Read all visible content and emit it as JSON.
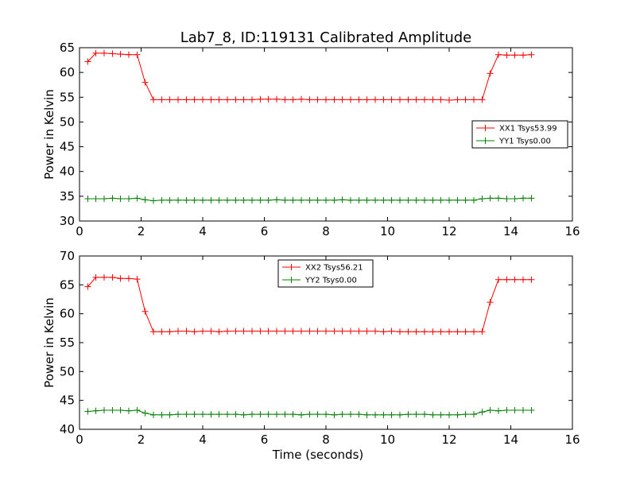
{
  "chart_data": [
    {
      "type": "line",
      "title": "Lab7_8, ID:119131 Calibrated Amplitude",
      "xlabel": "",
      "ylabel": "Power in Kelvin",
      "xlim": [
        0,
        16
      ],
      "ylim": [
        30,
        65
      ],
      "xticks": [
        0,
        2,
        4,
        6,
        8,
        10,
        12,
        14,
        16
      ],
      "yticks": [
        30,
        35,
        40,
        45,
        50,
        55,
        60,
        65
      ],
      "grid": false,
      "legend_position": "center-right",
      "x": [
        0.27,
        0.53,
        0.8,
        1.07,
        1.33,
        1.6,
        1.87,
        2.13,
        2.4,
        2.67,
        2.93,
        3.2,
        3.47,
        3.73,
        4.0,
        4.27,
        4.53,
        4.8,
        5.07,
        5.33,
        5.6,
        5.87,
        6.13,
        6.4,
        6.67,
        6.93,
        7.2,
        7.47,
        7.73,
        8.0,
        8.27,
        8.53,
        8.8,
        9.07,
        9.33,
        9.6,
        9.87,
        10.13,
        10.4,
        10.67,
        10.93,
        11.2,
        11.47,
        11.73,
        12.0,
        12.27,
        12.53,
        12.8,
        13.07,
        13.33,
        13.6,
        13.87,
        14.13,
        14.4,
        14.67
      ],
      "series": [
        {
          "name": "XX1 Tsys53.99",
          "color": "#ff0000",
          "values": [
            62.2,
            63.9,
            63.9,
            63.8,
            63.7,
            63.6,
            63.6,
            58.0,
            54.5,
            54.5,
            54.5,
            54.5,
            54.5,
            54.5,
            54.5,
            54.5,
            54.5,
            54.5,
            54.5,
            54.5,
            54.5,
            54.6,
            54.6,
            54.6,
            54.5,
            54.5,
            54.6,
            54.5,
            54.5,
            54.5,
            54.5,
            54.5,
            54.5,
            54.5,
            54.5,
            54.5,
            54.5,
            54.5,
            54.5,
            54.5,
            54.5,
            54.5,
            54.5,
            54.5,
            54.4,
            54.5,
            54.5,
            54.5,
            54.5,
            59.8,
            63.6,
            63.5,
            63.5,
            63.5,
            63.6
          ]
        },
        {
          "name": "YY1 Tsys0.00",
          "color": "#008000",
          "values": [
            34.5,
            34.5,
            34.5,
            34.6,
            34.5,
            34.5,
            34.6,
            34.3,
            34.1,
            34.2,
            34.2,
            34.2,
            34.2,
            34.2,
            34.2,
            34.2,
            34.2,
            34.2,
            34.2,
            34.2,
            34.2,
            34.2,
            34.2,
            34.3,
            34.2,
            34.2,
            34.2,
            34.2,
            34.2,
            34.2,
            34.2,
            34.3,
            34.2,
            34.2,
            34.2,
            34.2,
            34.2,
            34.2,
            34.2,
            34.2,
            34.2,
            34.2,
            34.2,
            34.2,
            34.2,
            34.2,
            34.2,
            34.2,
            34.5,
            34.6,
            34.6,
            34.5,
            34.5,
            34.6,
            34.6
          ]
        }
      ]
    },
    {
      "type": "line",
      "title": "",
      "xlabel": "Time (seconds)",
      "ylabel": "Power in Kelvin",
      "xlim": [
        0,
        16
      ],
      "ylim": [
        40,
        70
      ],
      "xticks": [
        0,
        2,
        4,
        6,
        8,
        10,
        12,
        14,
        16
      ],
      "yticks": [
        40,
        45,
        50,
        55,
        60,
        65,
        70
      ],
      "grid": false,
      "legend_position": "top-center",
      "x": [
        0.27,
        0.53,
        0.8,
        1.07,
        1.33,
        1.6,
        1.87,
        2.13,
        2.4,
        2.67,
        2.93,
        3.2,
        3.47,
        3.73,
        4.0,
        4.27,
        4.53,
        4.8,
        5.07,
        5.33,
        5.6,
        5.87,
        6.13,
        6.4,
        6.67,
        6.93,
        7.2,
        7.47,
        7.73,
        8.0,
        8.27,
        8.53,
        8.8,
        9.07,
        9.33,
        9.6,
        9.87,
        10.13,
        10.4,
        10.67,
        10.93,
        11.2,
        11.47,
        11.73,
        12.0,
        12.27,
        12.53,
        12.8,
        13.07,
        13.33,
        13.6,
        13.87,
        14.13,
        14.4,
        14.67
      ],
      "series": [
        {
          "name": "XX2 Tsys56.21",
          "color": "#ff0000",
          "values": [
            64.7,
            66.3,
            66.3,
            66.3,
            66.1,
            66.1,
            66.0,
            60.4,
            56.9,
            56.9,
            56.9,
            57.0,
            57.0,
            56.9,
            57.0,
            57.0,
            56.9,
            57.0,
            57.0,
            57.0,
            57.0,
            57.0,
            57.0,
            57.0,
            57.0,
            57.0,
            57.0,
            57.0,
            57.0,
            57.0,
            57.0,
            57.0,
            57.0,
            57.0,
            57.0,
            57.0,
            56.9,
            57.0,
            56.9,
            56.9,
            56.9,
            56.9,
            56.9,
            56.9,
            56.9,
            56.9,
            56.9,
            56.9,
            56.9,
            62.0,
            65.9,
            65.9,
            65.9,
            65.9,
            65.9
          ]
        },
        {
          "name": "YY2 Tsys0.00",
          "color": "#008000",
          "values": [
            43.1,
            43.2,
            43.3,
            43.3,
            43.3,
            43.2,
            43.3,
            42.8,
            42.5,
            42.5,
            42.5,
            42.6,
            42.6,
            42.6,
            42.6,
            42.6,
            42.6,
            42.6,
            42.6,
            42.5,
            42.6,
            42.6,
            42.6,
            42.6,
            42.6,
            42.6,
            42.5,
            42.6,
            42.6,
            42.6,
            42.5,
            42.6,
            42.6,
            42.6,
            42.5,
            42.5,
            42.5,
            42.5,
            42.5,
            42.6,
            42.6,
            42.6,
            42.5,
            42.5,
            42.5,
            42.5,
            42.6,
            42.6,
            43.0,
            43.3,
            43.2,
            43.3,
            43.3,
            43.3,
            43.3
          ]
        }
      ]
    }
  ]
}
